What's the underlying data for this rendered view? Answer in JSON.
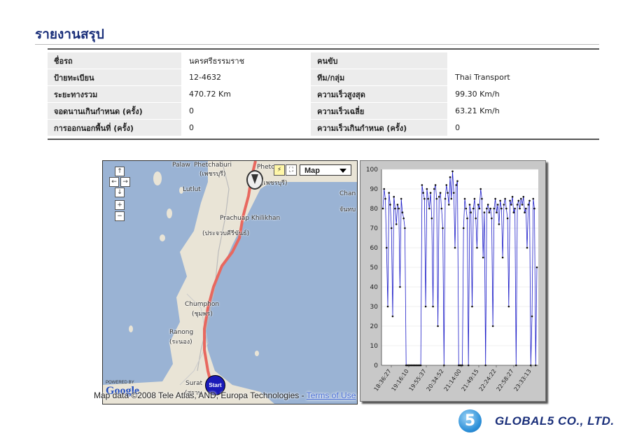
{
  "page": {
    "title": "รายงานสรุป"
  },
  "summary": {
    "rows": [
      {
        "label1": "ชื่อรถ",
        "value1": "นครศรีธรรมราช",
        "label2": "คนขับ",
        "value2": ""
      },
      {
        "label1": "ป้ายทะเบียน",
        "value1": "12-4632",
        "label2": "ทีม/กลุ่ม",
        "value2": "Thai Transport"
      },
      {
        "label1": "ระยะทางรวม",
        "value1": "470.72 Km",
        "label2": "ความเร็วสูงสุด",
        "value2": "99.30 Km/h"
      },
      {
        "label1": "จอดนานเกินกำหนด (ครั้ง)",
        "value1": "0",
        "label2": "ความเร็วเฉลี่ย",
        "value2": "63.21 Km/h"
      },
      {
        "label1": "การออกนอกพื้นที่ (ครั้ง)",
        "value1": "0",
        "label2": "ความเร็วเกินกำหนด (ครั้ง)",
        "value2": "0"
      }
    ]
  },
  "map": {
    "type_selector": "Map",
    "places": [
      {
        "name": "Phetchaburi",
        "thai": "(เพชรบุรี)"
      },
      {
        "name": "Palaw"
      },
      {
        "name": "Lutlut"
      },
      {
        "name": "Prachuap Khilikhan",
        "thai": "(ประจวบคีรีขันธ์)"
      },
      {
        "name": "Chumphon",
        "thai": "(ชุมพร)"
      },
      {
        "name": "Ranong",
        "thai": "(ระนอง)"
      },
      {
        "name": "Surat",
        "thai": "(สุราษ"
      },
      {
        "name": "Phetc",
        "thai": "(เพชรบุรี)"
      },
      {
        "name": "Chan",
        "thai": "จันทบ"
      }
    ],
    "start_marker": "Start",
    "powered_by": "POWERED BY",
    "brand": "Google",
    "credit": "Map data ©2008 Tele Atlas, AND, Europa Technologies - ",
    "terms_link": "Terms of Use",
    "colors": {
      "water": "#9ab3d4",
      "land": "#e9e4d6",
      "route": "#e8685f"
    }
  },
  "chart_data": {
    "type": "line",
    "ylim": [
      0,
      100
    ],
    "yticks": [
      0,
      10,
      20,
      30,
      40,
      50,
      60,
      70,
      80,
      90,
      100
    ],
    "xticks": [
      "18:36:27",
      "19:16:10",
      "19:55:37",
      "20:34:52",
      "21:14:00",
      "21:49:15",
      "22:24:22",
      "22:58:27",
      "23:33:13"
    ],
    "series": [
      {
        "color": "#1e1ec8",
        "values": [
          80,
          90,
          85,
          60,
          30,
          88,
          82,
          70,
          25,
          86,
          80,
          72,
          82,
          80,
          40,
          85,
          78,
          75,
          70,
          0,
          0,
          0,
          0,
          0,
          0,
          0,
          0,
          0,
          0,
          0,
          0,
          0,
          92,
          88,
          85,
          30,
          90,
          85,
          80,
          88,
          75,
          30,
          90,
          92,
          85,
          20,
          86,
          88,
          80,
          70,
          0,
          85,
          92,
          88,
          82,
          96,
          85,
          99,
          88,
          60,
          92,
          94,
          0,
          0,
          0,
          0,
          70,
          85,
          80,
          75,
          0,
          82,
          78,
          30,
          80,
          85,
          75,
          60,
          82,
          80,
          90,
          85,
          55,
          78,
          0,
          80,
          82,
          78,
          80,
          75,
          20,
          80,
          85,
          78,
          82,
          72,
          84,
          80,
          55,
          82,
          85,
          80,
          75,
          30,
          84,
          82,
          86,
          78,
          80,
          0,
          82,
          84,
          80,
          85,
          82,
          86,
          78,
          80,
          60,
          82,
          84,
          0,
          25,
          85,
          80,
          0,
          50
        ]
      }
    ]
  },
  "logo": {
    "digit": "5",
    "text": "GLOBAL5 CO., LTD."
  }
}
